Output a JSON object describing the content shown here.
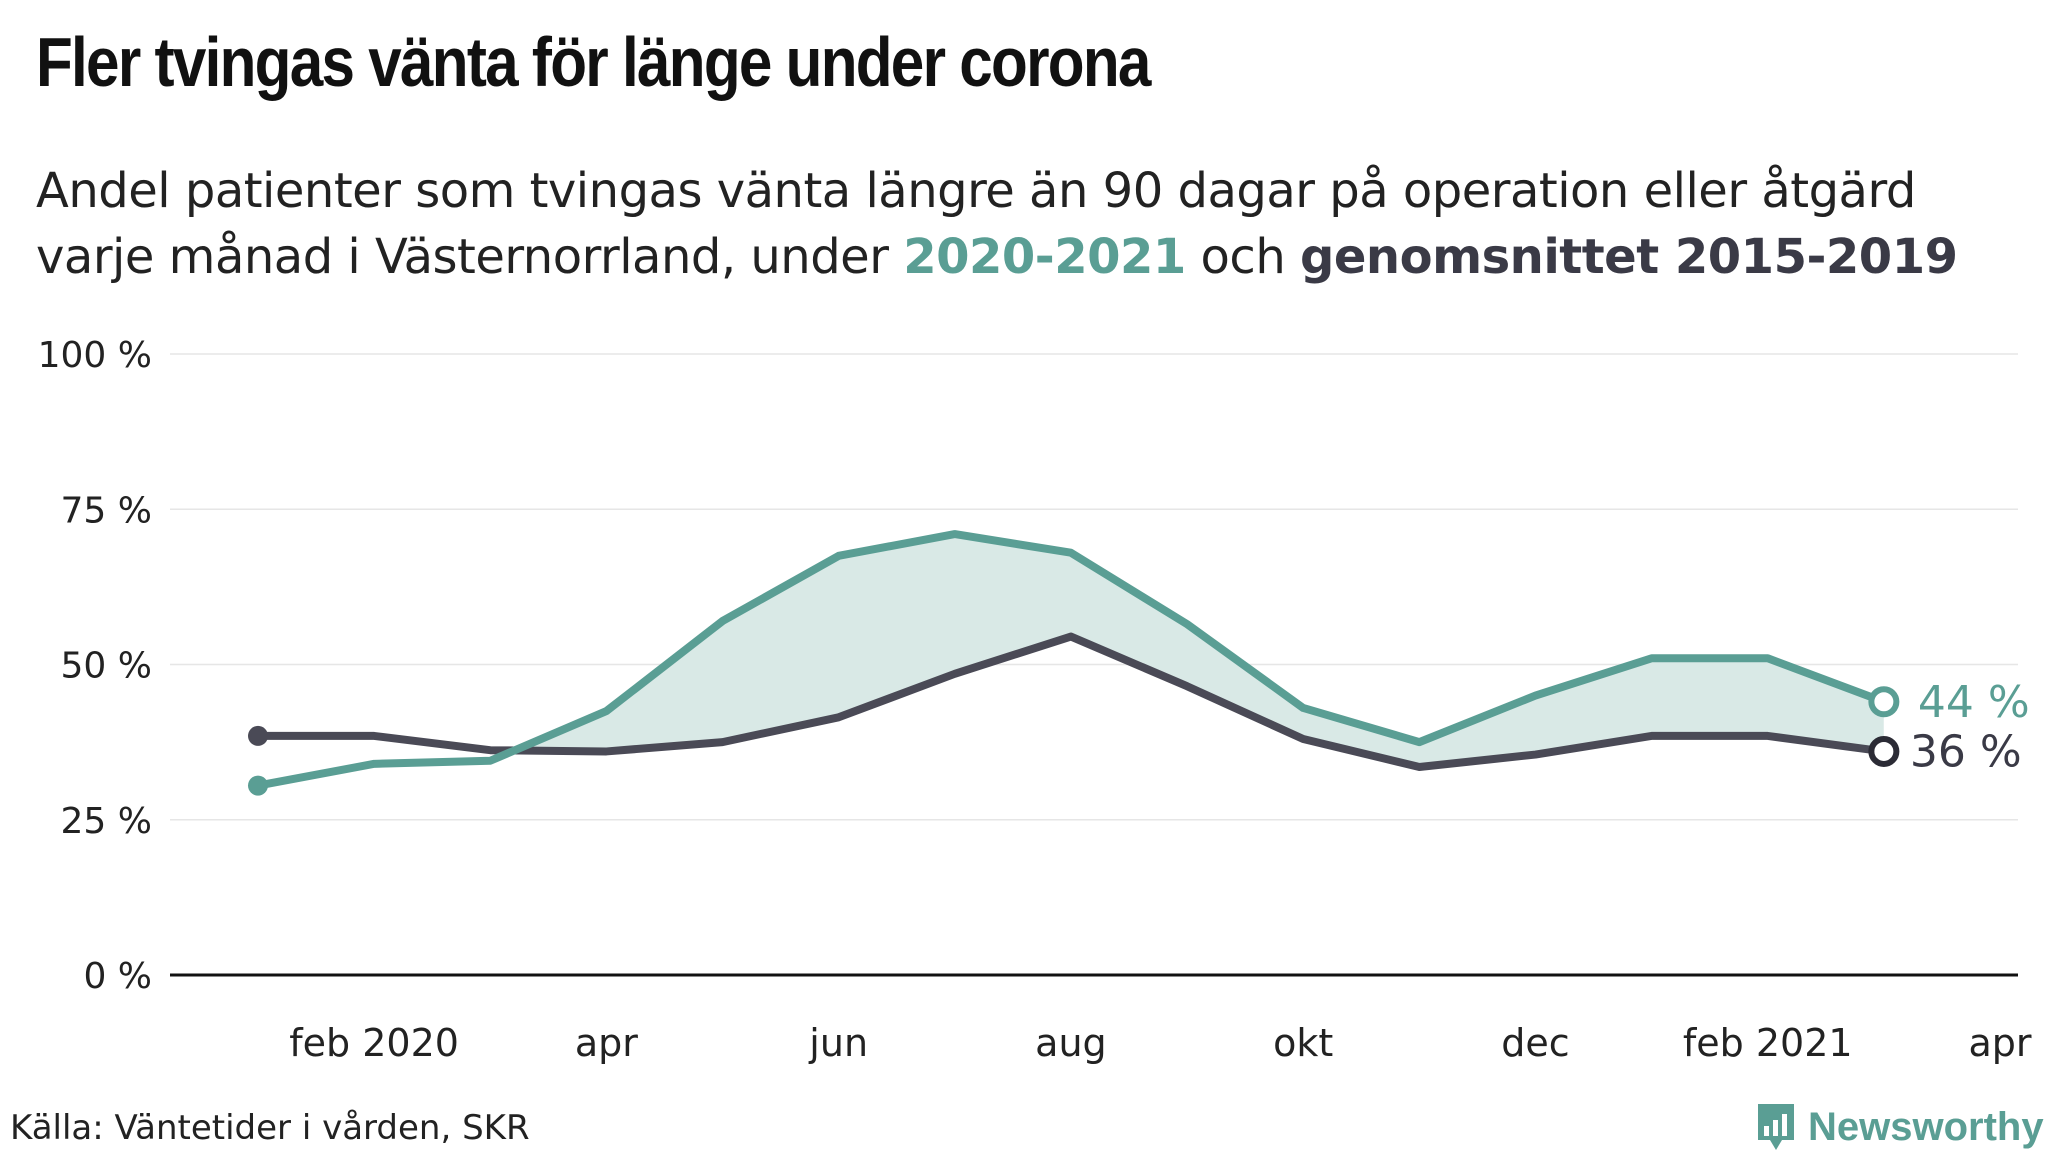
{
  "title": "Fler tvingas vänta för länge under corona",
  "subtitle": {
    "part1": "Andel patienter som tvingas vänta längre än 90 dagar på operation eller åtgärd varje månad i Västernorrland, under ",
    "highlight1": "2020-2021",
    "part2": " och ",
    "highlight2": "genomsnittet 2015-2019"
  },
  "source": "Källa: Väntetider i vården, SKR",
  "brand": "Newsworthy",
  "colors": {
    "current": "#5a9e94",
    "average": "#4a4a56",
    "fill": "#d9e9e6",
    "grid": "#e6e6e6",
    "axis": "#111111"
  },
  "chart_data": {
    "type": "line",
    "x_domain": [
      "2020-01",
      "2021-04"
    ],
    "ylim": [
      0,
      100
    ],
    "y_ticks": [
      {
        "value": 0,
        "label": "0 %"
      },
      {
        "value": 25,
        "label": "25 %"
      },
      {
        "value": 50,
        "label": "50 %"
      },
      {
        "value": 75,
        "label": "75 %"
      },
      {
        "value": 100,
        "label": "100 %"
      }
    ],
    "x_ticks": [
      {
        "month": "2020-02",
        "label": "feb 2020"
      },
      {
        "month": "2020-04",
        "label": "apr"
      },
      {
        "month": "2020-06",
        "label": "jun"
      },
      {
        "month": "2020-08",
        "label": "aug"
      },
      {
        "month": "2020-10",
        "label": "okt"
      },
      {
        "month": "2020-12",
        "label": "dec"
      },
      {
        "month": "2021-02",
        "label": "feb 2021"
      },
      {
        "month": "2021-04",
        "label": "apr"
      }
    ],
    "months": [
      "2020-01",
      "2020-02",
      "2020-03",
      "2020-04",
      "2020-05",
      "2020-06",
      "2020-07",
      "2020-08",
      "2020-09",
      "2020-10",
      "2020-11",
      "2020-12",
      "2021-01",
      "2021-02",
      "2021-03"
    ],
    "series": [
      {
        "name": "2020-2021",
        "key": "current",
        "values": [
          30.5,
          34,
          34.5,
          42.5,
          57,
          67.5,
          71,
          68,
          56.5,
          43,
          37.5,
          45,
          51,
          51,
          44
        ],
        "end_label": "44 %"
      },
      {
        "name": "genomsnittet 2015-2019",
        "key": "average",
        "values": [
          38.5,
          38.5,
          36.2,
          36,
          37.5,
          41.5,
          48.5,
          54.5,
          46.5,
          38,
          33.5,
          35.5,
          38.5,
          38.5,
          36
        ],
        "end_label": "36 %"
      }
    ]
  }
}
